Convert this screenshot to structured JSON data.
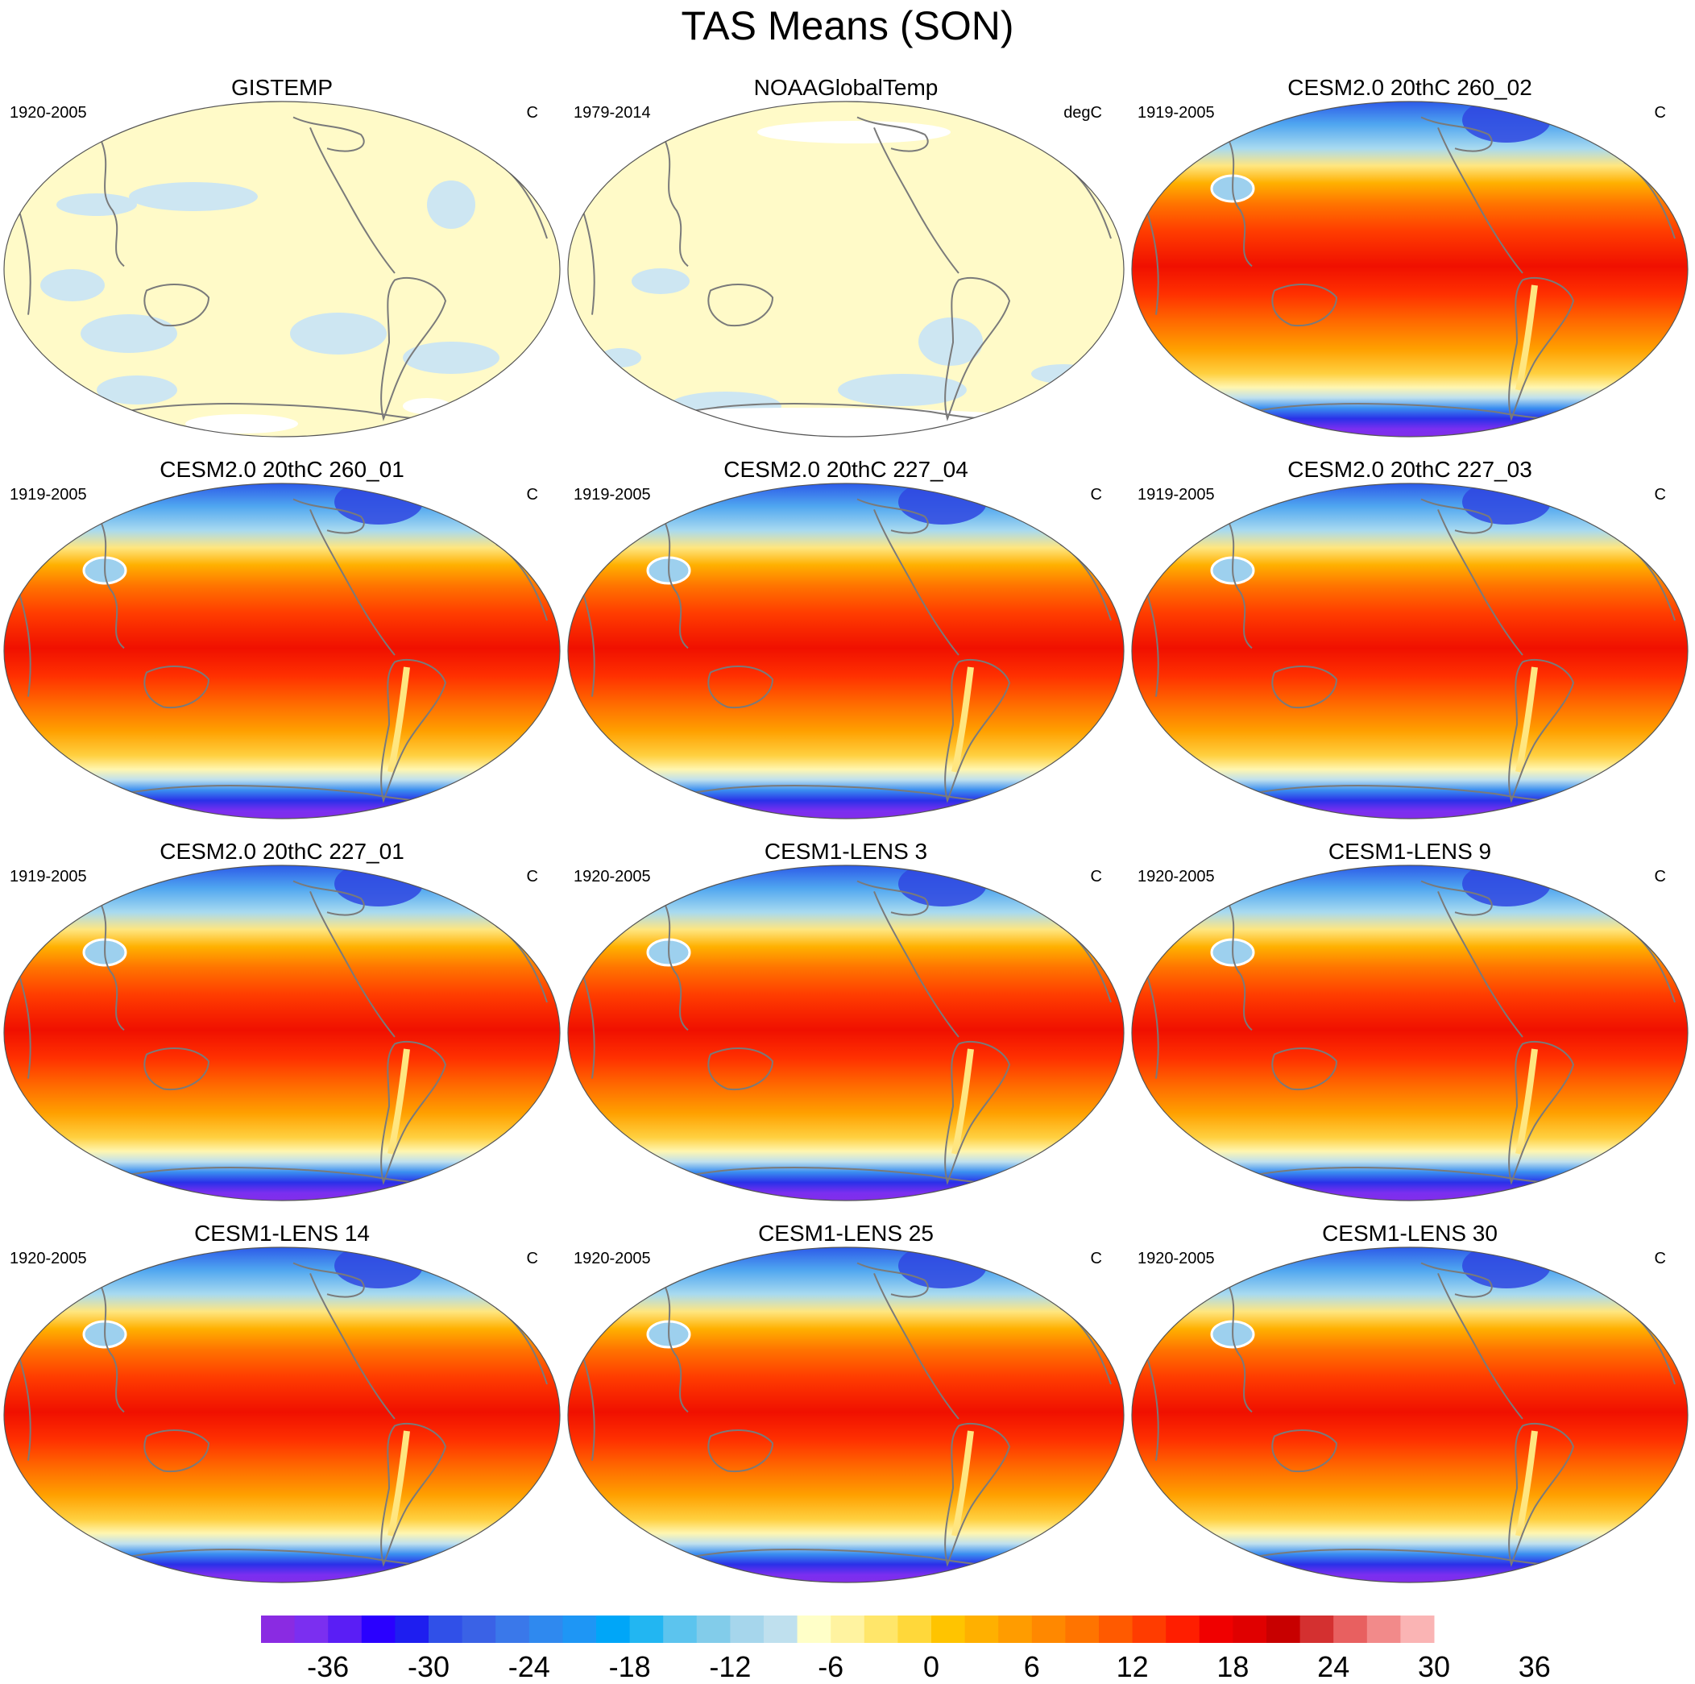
{
  "title": "TAS Means (SON)",
  "panels": [
    {
      "title": "GISTEMP",
      "period": "1920-2005",
      "units": "C",
      "kind": "obs1"
    },
    {
      "title": "NOAAGlobalTemp",
      "period": "1979-2014",
      "units": "degC",
      "kind": "obs2"
    },
    {
      "title": "CESM2.0 20thC 260_02",
      "period": "1919-2005",
      "units": "C",
      "kind": "model"
    },
    {
      "title": "CESM2.0 20thC 260_01",
      "period": "1919-2005",
      "units": "C",
      "kind": "model"
    },
    {
      "title": "CESM2.0 20thC 227_04",
      "period": "1919-2005",
      "units": "C",
      "kind": "model"
    },
    {
      "title": "CESM2.0 20thC 227_03",
      "period": "1919-2005",
      "units": "C",
      "kind": "model"
    },
    {
      "title": "CESM2.0 20thC 227_01",
      "period": "1919-2005",
      "units": "C",
      "kind": "model"
    },
    {
      "title": "CESM1-LENS 3",
      "period": "1920-2005",
      "units": "C",
      "kind": "model"
    },
    {
      "title": "CESM1-LENS 9",
      "period": "1920-2005",
      "units": "C",
      "kind": "model"
    },
    {
      "title": "CESM1-LENS 14",
      "period": "1920-2005",
      "units": "C",
      "kind": "model"
    },
    {
      "title": "CESM1-LENS 25",
      "period": "1920-2005",
      "units": "C",
      "kind": "model"
    },
    {
      "title": "CESM1-LENS 30",
      "period": "1920-2005",
      "units": "C",
      "kind": "model"
    }
  ],
  "colorbar": {
    "levels_min": -40,
    "levels_step": 2,
    "tick_labels": [
      "-36",
      "-30",
      "-24",
      "-18",
      "-12",
      "-6",
      "0",
      "6",
      "12",
      "18",
      "24",
      "30",
      "36"
    ],
    "colors": [
      "#8a2be2",
      "#7b2ff0",
      "#5a1ef5",
      "#2a00ff",
      "#1e1ef0",
      "#3050e8",
      "#3a62e6",
      "#3a78ea",
      "#2f89ef",
      "#1e96f5",
      "#00a6f8",
      "#22b6f2",
      "#5cc4ee",
      "#82ccea",
      "#a6d6ec",
      "#bfe0ee",
      "#ffffc8",
      "#fff3a0",
      "#ffe66a",
      "#ffd83a",
      "#ffc400",
      "#ffb000",
      "#ff9c00",
      "#ff8800",
      "#ff7400",
      "#ff5a00",
      "#ff3c00",
      "#ff1e00",
      "#f00000",
      "#e00000",
      "#c80000",
      "#d43030",
      "#e86060",
      "#f28a8a",
      "#fab4b4"
    ]
  }
}
